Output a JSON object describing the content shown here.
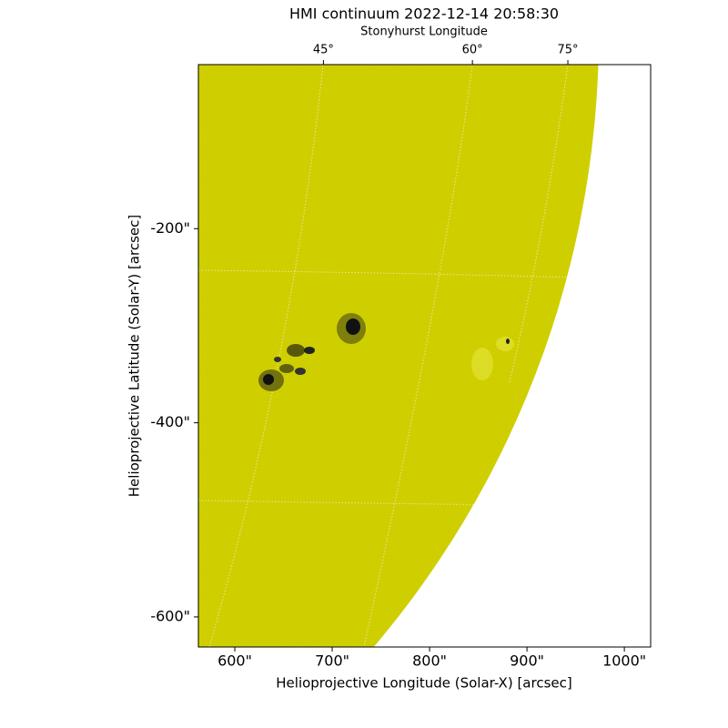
{
  "chart_data": {
    "type": "image",
    "title": "HMI continuum 2022-12-14 20:58:30",
    "top_axis_label": "Stonyhurst Longitude",
    "xlabel": "Helioprojective Longitude (Solar-X) [arcsec]",
    "ylabel": "Helioprojective Latitude (Solar-Y) [arcsec]",
    "xlim": [
      562.6,
      1027
    ],
    "ylim": [
      -631,
      -31
    ],
    "xticks": [
      {
        "value": 600,
        "label": "600\""
      },
      {
        "value": 700,
        "label": "700\""
      },
      {
        "value": 800,
        "label": "800\""
      },
      {
        "value": 900,
        "label": "900\""
      },
      {
        "value": 1000,
        "label": "1000\""
      }
    ],
    "yticks": [
      {
        "value": -200,
        "label": "-200\""
      },
      {
        "value": -400,
        "label": "-400\""
      },
      {
        "value": -600,
        "label": "-600\""
      }
    ],
    "top_ticks": [
      {
        "value": 691,
        "label": "45°"
      },
      {
        "value": 844,
        "label": "60°"
      },
      {
        "value": 942,
        "label": "75°"
      }
    ]
  }
}
